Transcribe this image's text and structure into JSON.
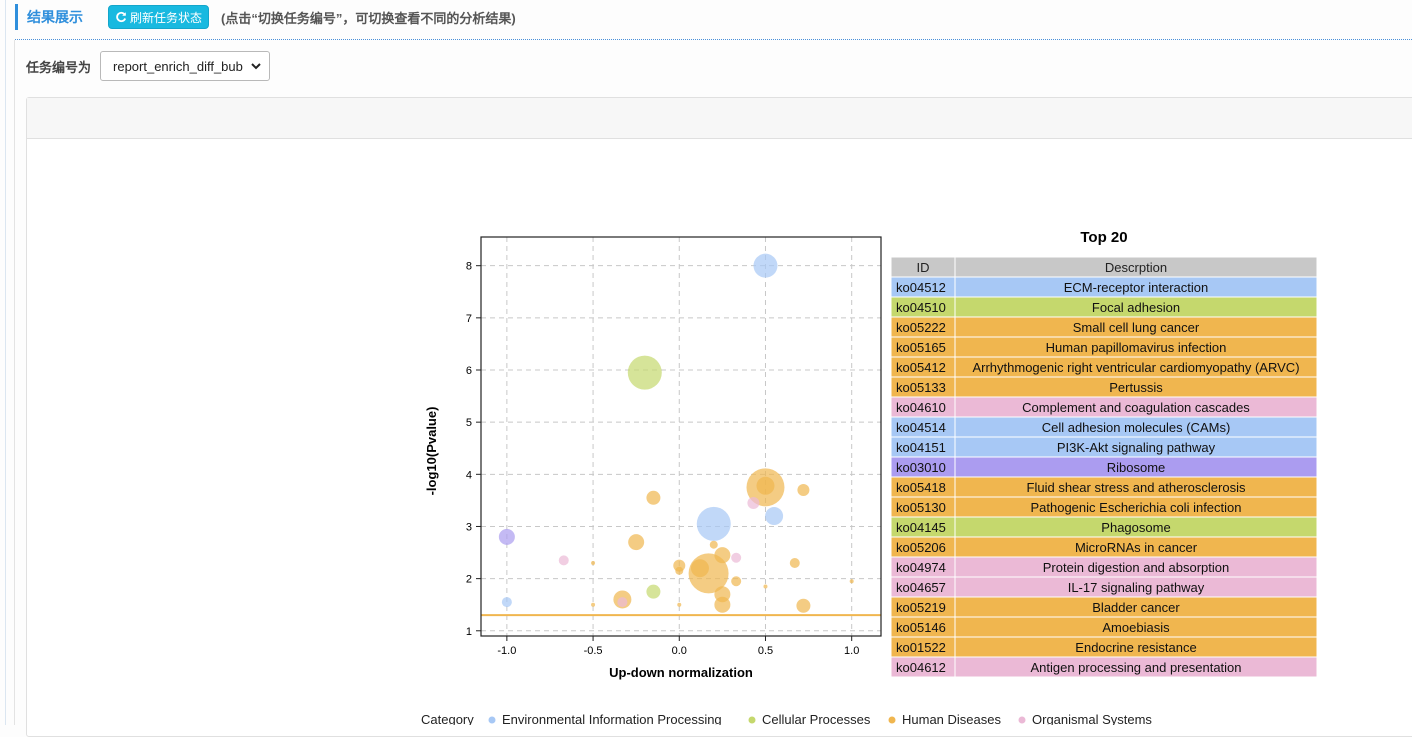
{
  "header": {
    "title": "结果展示",
    "refresh_label": "刷新任务状态",
    "hint": "(点击“切换任务编号”，可切换查看不同的分析结果)"
  },
  "task": {
    "label": "任务编号为",
    "selected": "report_enrich_diff_bub"
  },
  "colors": {
    "Environmental Information Processing": "#a7c8f5",
    "Cellular Processes": "#c5d86d",
    "Human Diseases": "#f0b64f",
    "Organismal Systems": "#ebb9d6",
    "Genetic Information Processing": "#ab9cf0",
    "header": "#c8c8c8",
    "threshold": "#f0b64f"
  },
  "chart_data": {
    "type": "scatter",
    "xlabel": "Up-down normalization",
    "ylabel": "-log10(Pvalue)",
    "xlim": [
      -1.15,
      1.17
    ],
    "ylim": [
      0.9,
      8.55
    ],
    "xticks": [
      "-1.0",
      "-0.5",
      "0.0",
      "0.5",
      "1.0"
    ],
    "xtick_values": [
      -1.0,
      -0.5,
      0.0,
      0.5,
      1.0
    ],
    "yticks": [
      "1",
      "2",
      "3",
      "4",
      "5",
      "6",
      "7",
      "8"
    ],
    "ytick_values": [
      1,
      2,
      3,
      4,
      5,
      6,
      7,
      8
    ],
    "grid": true,
    "threshold_y": 1.3,
    "points": [
      {
        "x": 0.5,
        "y": 8.0,
        "size": 12,
        "category": "Environmental Information Processing"
      },
      {
        "x": -0.2,
        "y": 5.95,
        "size": 17,
        "category": "Cellular Processes"
      },
      {
        "x": 0.5,
        "y": 3.75,
        "size": 19,
        "category": "Human Diseases"
      },
      {
        "x": 0.5,
        "y": 3.78,
        "size": 9,
        "category": "Human Diseases"
      },
      {
        "x": 0.72,
        "y": 3.7,
        "size": 6,
        "category": "Human Diseases"
      },
      {
        "x": -0.15,
        "y": 3.55,
        "size": 7,
        "category": "Human Diseases"
      },
      {
        "x": 0.43,
        "y": 3.45,
        "size": 6,
        "category": "Organismal Systems"
      },
      {
        "x": 0.2,
        "y": 3.05,
        "size": 17,
        "category": "Environmental Information Processing"
      },
      {
        "x": 0.55,
        "y": 3.2,
        "size": 9,
        "category": "Environmental Information Processing"
      },
      {
        "x": -1.0,
        "y": 2.8,
        "size": 8,
        "category": "Genetic Information Processing"
      },
      {
        "x": -0.25,
        "y": 2.7,
        "size": 8,
        "category": "Human Diseases"
      },
      {
        "x": 0.2,
        "y": 2.65,
        "size": 4,
        "category": "Human Diseases"
      },
      {
        "x": 0.25,
        "y": 2.45,
        "size": 8,
        "category": "Human Diseases"
      },
      {
        "x": 0.33,
        "y": 2.4,
        "size": 5,
        "category": "Organismal Systems"
      },
      {
        "x": -0.67,
        "y": 2.35,
        "size": 5,
        "category": "Organismal Systems"
      },
      {
        "x": -0.5,
        "y": 2.3,
        "size": 2,
        "category": "Human Diseases"
      },
      {
        "x": 0.67,
        "y": 2.3,
        "size": 5,
        "category": "Human Diseases"
      },
      {
        "x": 0.0,
        "y": 2.25,
        "size": 6,
        "category": "Human Diseases"
      },
      {
        "x": 0.0,
        "y": 2.15,
        "size": 4,
        "category": "Human Diseases"
      },
      {
        "x": 0.12,
        "y": 2.2,
        "size": 9,
        "category": "Human Diseases"
      },
      {
        "x": 0.17,
        "y": 2.1,
        "size": 20,
        "category": "Human Diseases"
      },
      {
        "x": 0.33,
        "y": 1.95,
        "size": 5,
        "category": "Human Diseases"
      },
      {
        "x": 1.0,
        "y": 1.95,
        "size": 2,
        "category": "Human Diseases"
      },
      {
        "x": 0.5,
        "y": 1.85,
        "size": 2,
        "category": "Human Diseases"
      },
      {
        "x": -0.15,
        "y": 1.75,
        "size": 7,
        "category": "Cellular Processes"
      },
      {
        "x": 0.25,
        "y": 1.7,
        "size": 8,
        "category": "Human Diseases"
      },
      {
        "x": -0.33,
        "y": 1.6,
        "size": 9,
        "category": "Human Diseases"
      },
      {
        "x": -0.33,
        "y": 1.55,
        "size": 5,
        "category": "Organismal Systems"
      },
      {
        "x": -1.0,
        "y": 1.55,
        "size": 5,
        "category": "Environmental Information Processing"
      },
      {
        "x": -0.5,
        "y": 1.5,
        "size": 2,
        "category": "Human Diseases"
      },
      {
        "x": 0.0,
        "y": 1.5,
        "size": 2,
        "category": "Human Diseases"
      },
      {
        "x": 0.25,
        "y": 1.5,
        "size": 8,
        "category": "Human Diseases"
      },
      {
        "x": 0.72,
        "y": 1.48,
        "size": 7,
        "category": "Human Diseases"
      }
    ],
    "table": {
      "title": "Top 20",
      "columns": [
        "ID",
        "Descrption"
      ],
      "rows": [
        {
          "id": "ko04512",
          "desc": "ECM-receptor interaction",
          "category": "Environmental Information Processing"
        },
        {
          "id": "ko04510",
          "desc": "Focal adhesion",
          "category": "Cellular Processes"
        },
        {
          "id": "ko05222",
          "desc": "Small cell lung cancer",
          "category": "Human Diseases"
        },
        {
          "id": "ko05165",
          "desc": "Human papillomavirus infection",
          "category": "Human Diseases"
        },
        {
          "id": "ko05412",
          "desc": "Arrhythmogenic right ventricular cardiomyopathy (ARVC)",
          "category": "Human Diseases"
        },
        {
          "id": "ko05133",
          "desc": "Pertussis",
          "category": "Human Diseases"
        },
        {
          "id": "ko04610",
          "desc": "Complement and coagulation cascades",
          "category": "Organismal Systems"
        },
        {
          "id": "ko04514",
          "desc": "Cell adhesion molecules (CAMs)",
          "category": "Environmental Information Processing"
        },
        {
          "id": "ko04151",
          "desc": "PI3K-Akt signaling pathway",
          "category": "Environmental Information Processing"
        },
        {
          "id": "ko03010",
          "desc": "Ribosome",
          "category": "Genetic Information Processing"
        },
        {
          "id": "ko05418",
          "desc": "Fluid shear stress and atherosclerosis",
          "category": "Human Diseases"
        },
        {
          "id": "ko05130",
          "desc": "Pathogenic Escherichia coli infection",
          "category": "Human Diseases"
        },
        {
          "id": "ko04145",
          "desc": "Phagosome",
          "category": "Cellular Processes"
        },
        {
          "id": "ko05206",
          "desc": "MicroRNAs in cancer",
          "category": "Human Diseases"
        },
        {
          "id": "ko04974",
          "desc": "Protein digestion and absorption",
          "category": "Organismal Systems"
        },
        {
          "id": "ko04657",
          "desc": "IL-17 signaling pathway",
          "category": "Organismal Systems"
        },
        {
          "id": "ko05219",
          "desc": "Bladder cancer",
          "category": "Human Diseases"
        },
        {
          "id": "ko05146",
          "desc": "Amoebiasis",
          "category": "Human Diseases"
        },
        {
          "id": "ko01522",
          "desc": "Endocrine resistance",
          "category": "Human Diseases"
        },
        {
          "id": "ko04612",
          "desc": "Antigen processing and presentation",
          "category": "Organismal Systems"
        }
      ]
    },
    "legend": {
      "placement": "bottom",
      "title": "Category",
      "items": [
        "Environmental Information Processing",
        "Cellular Processes",
        "Human Diseases",
        "Organismal Systems"
      ]
    }
  }
}
